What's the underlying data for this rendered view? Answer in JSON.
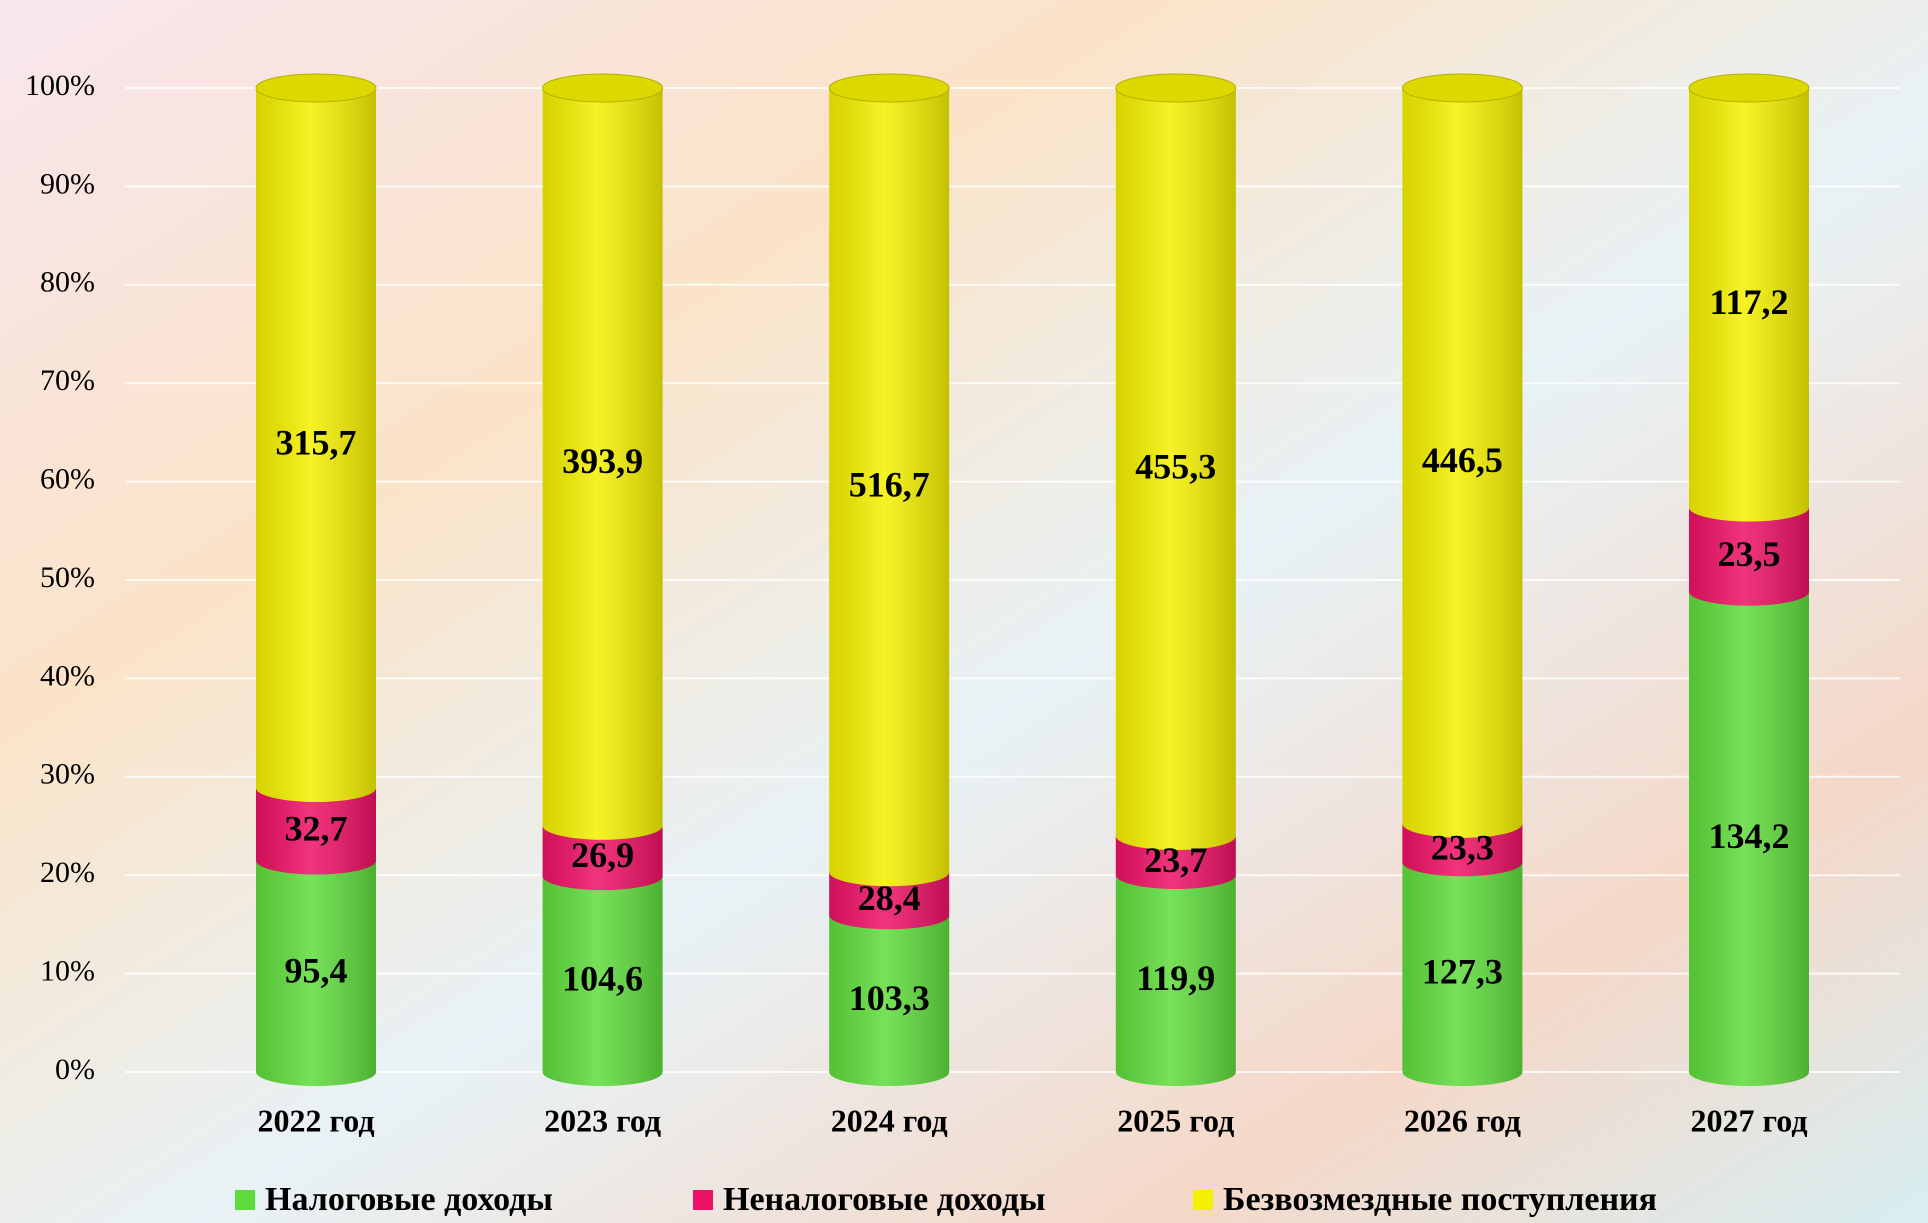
{
  "chart_data": {
    "type": "bar",
    "stacking": "percent",
    "categories": [
      "2022 год",
      "2023 год",
      "2024 год",
      "2025 год",
      "2026 год",
      "2027 год"
    ],
    "series": [
      {
        "name": "Налоговые доходы",
        "color": "#5fdc3c",
        "values": [
          95.4,
          104.6,
          103.3,
          119.9,
          127.3,
          134.2
        ]
      },
      {
        "name": "Неналоговые доходы",
        "color": "#ee1166",
        "values": [
          32.7,
          26.9,
          28.4,
          23.7,
          23.3,
          23.5
        ]
      },
      {
        "name": "Безвозмездные поступления",
        "color": "#f4f000",
        "values": [
          315.7,
          393.9,
          516.7,
          455.3,
          446.5,
          117.2
        ]
      }
    ],
    "value_labels": [
      [
        "95,4",
        "104,6",
        "103,3",
        "119,9",
        "127,3",
        "134,2"
      ],
      [
        "32,7",
        "26,9",
        "28,4",
        "23,7",
        "23,3",
        "23,5"
      ],
      [
        "315,7",
        "393,9",
        "516,7",
        "455,3",
        "446,5",
        "117,2"
      ]
    ],
    "ylim": [
      0,
      100
    ],
    "yticks": [
      {
        "value": 0,
        "label": "0%"
      },
      {
        "value": 10,
        "label": "10%"
      },
      {
        "value": 20,
        "label": "20%"
      },
      {
        "value": 30,
        "label": "30%"
      },
      {
        "value": 40,
        "label": "40%"
      },
      {
        "value": 50,
        "label": "50%"
      },
      {
        "value": 60,
        "label": "60%"
      },
      {
        "value": 70,
        "label": "70%"
      },
      {
        "value": 80,
        "label": "80%"
      },
      {
        "value": 90,
        "label": "90%"
      },
      {
        "value": 100,
        "label": "100%"
      }
    ],
    "grid": true,
    "legend": "bottom"
  }
}
